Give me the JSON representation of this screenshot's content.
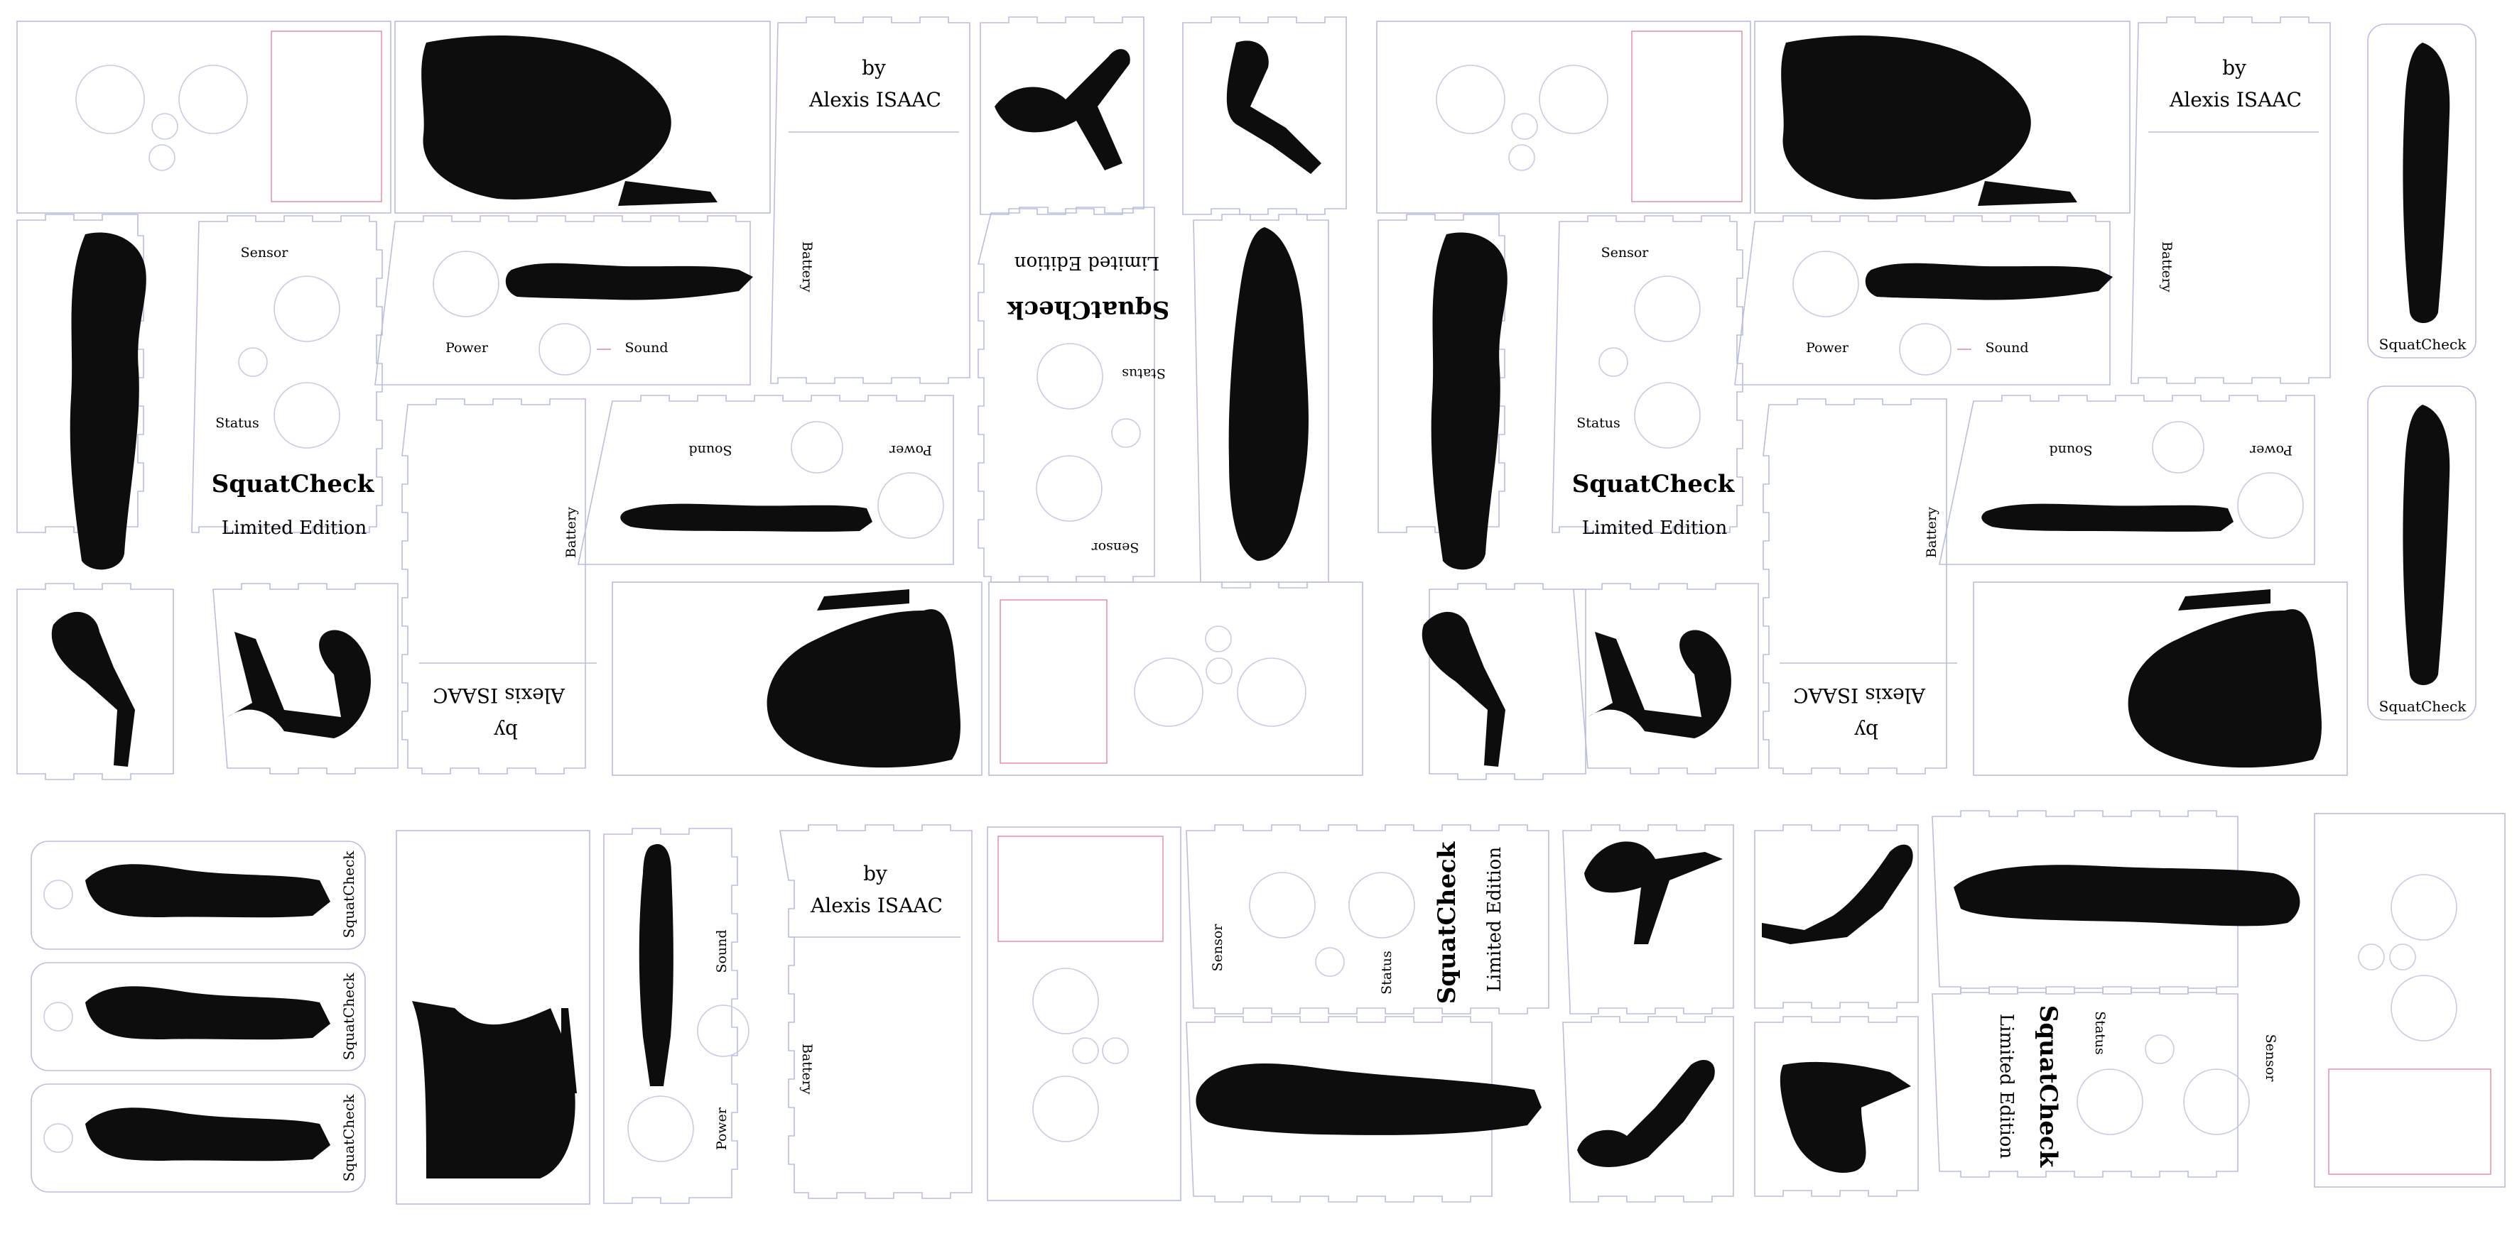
{
  "labels": {
    "sensor": "Sensor",
    "status": "Status",
    "power": "Power",
    "sound": "Sound",
    "battery": "Battery",
    "by": "by",
    "author": "Alexis ISAAC",
    "brand": "SquatCheck",
    "edition": "Limited Edition"
  },
  "icons": {
    "leg_muscles": "leg-muscles-illustration",
    "thigh_muscles": "thigh-muscles-illustration",
    "knee_bent": "bent-leg-illustration",
    "lower_leg": "lower-leg-illustration",
    "hip_pelvis": "hip-muscles-illustration"
  },
  "colors": {
    "cut_line": "#b9bde0",
    "cut_line_red": "#e08a9a",
    "engrave": "#000000"
  }
}
